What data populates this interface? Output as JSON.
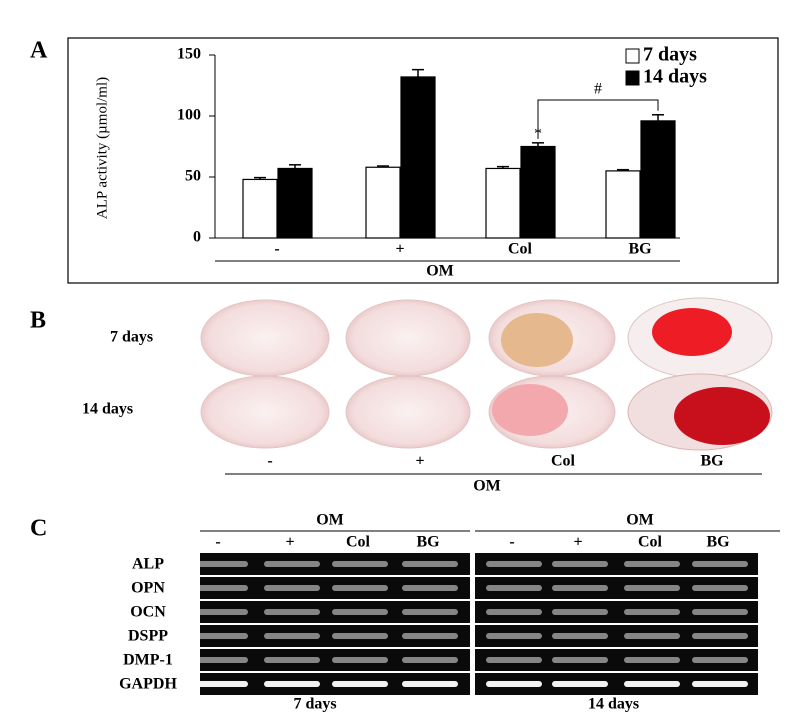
{
  "chart_data": {
    "type": "bar",
    "panel_label": "A",
    "y_label": "ALP activity (µmol/ml)",
    "categories": [
      "-",
      "+",
      "Col",
      "BG"
    ],
    "group_label": "OM",
    "series": [
      {
        "name": "7 days",
        "color": "#ffffff",
        "values": [
          48,
          58,
          57,
          55
        ],
        "errors": [
          1.5,
          1,
          1.5,
          1
        ]
      },
      {
        "name": "14 days",
        "color": "#000000",
        "values": [
          57,
          132,
          75,
          96
        ],
        "errors": [
          3,
          6,
          3,
          5
        ]
      }
    ],
    "ylim": [
      0,
      150
    ],
    "yticks": [
      0,
      50,
      100,
      150
    ],
    "legend": "upper right",
    "annotations": {
      "star": "*",
      "hash": "#"
    }
  },
  "panel_b": {
    "label": "B",
    "rows": [
      "7 days",
      "14 days"
    ],
    "columns": [
      "-",
      "+",
      "Col",
      "BG"
    ],
    "group_label": "OM"
  },
  "panel_c": {
    "label": "C",
    "genes": [
      "ALP",
      "OPN",
      "OCN",
      "DSPP",
      "DMP-1",
      "GAPDH"
    ],
    "groups": [
      {
        "header": "OM",
        "lanes": [
          "-",
          "+",
          "Col",
          "BG"
        ],
        "footer": "7 days"
      },
      {
        "header": "OM",
        "lanes": [
          "-",
          "+",
          "Col",
          "BG"
        ],
        "footer": "14 days"
      }
    ]
  }
}
